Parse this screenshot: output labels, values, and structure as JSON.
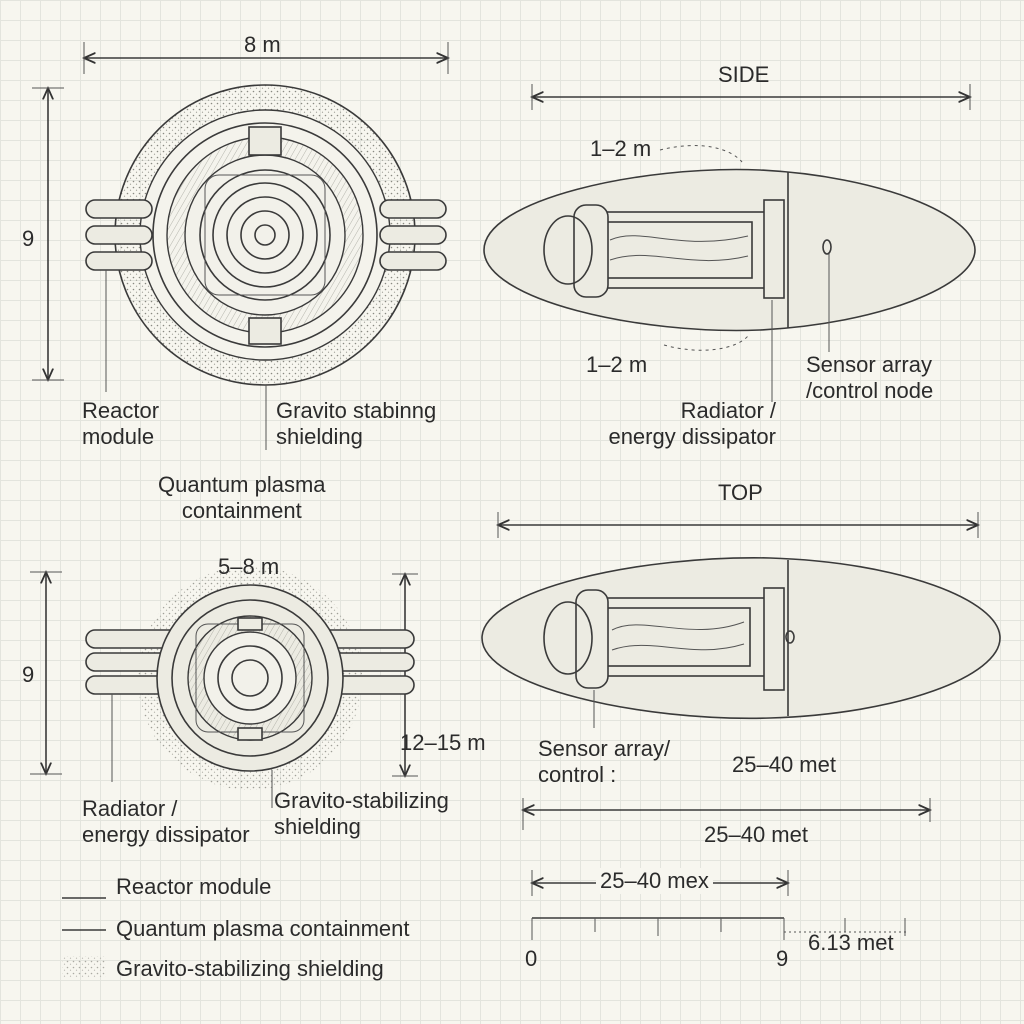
{
  "front_view": {
    "width_dim": "8 m",
    "height_dim": "9",
    "label_reactor": "Reactor\nmodule",
    "label_shielding": "Gravito stabinng\nshielding",
    "label_plasma": "Quantum plasma\ncontainment"
  },
  "side_view": {
    "title": "SIDE",
    "dim_top": "1–2 m",
    "dim_bottom": "1–2 m",
    "label_radiator": "Radiator /\nenergy dissipator",
    "label_sensor": "Sensor array\n/control node"
  },
  "end_view": {
    "width_dim": "5–8 m",
    "height_dim": "9",
    "depth_dim": "12–15 m",
    "label_radiator": "Radiator /\nenergy dissipator",
    "label_shielding": "Gravito-stabilizing\nshielding"
  },
  "top_view": {
    "title": "TOP",
    "label_sensor": "Sensor array/\ncontrol :",
    "dim_right": "25–40 met",
    "dim_length": "25–40 met"
  },
  "scale": {
    "span_label": "25–40 mex",
    "zero": "0",
    "end": "9",
    "extra": "6.13 met"
  },
  "legend": {
    "items": [
      "Reactor module",
      "Quantum plasma containment",
      "Gravito-stabilizing shielding"
    ]
  }
}
